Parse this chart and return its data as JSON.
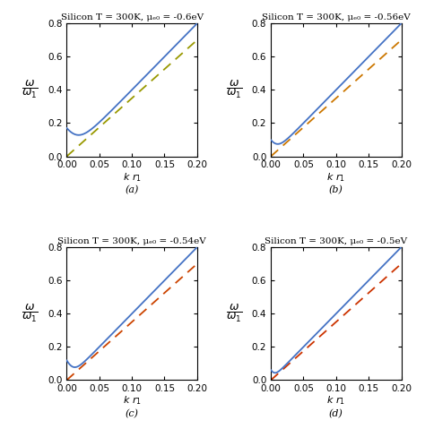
{
  "panels": [
    {
      "title": "Silicon T = 300K, μₑ₀ = -0.6eV",
      "label": "(a)",
      "omega0": 0.17,
      "sigma": 0.038,
      "slope_blue": 4.0,
      "dashed_color": "#999900",
      "dashed_slope": 3.5
    },
    {
      "title": "Silicon T = 300K, μₑ₀ = -0.56eV",
      "label": "(b)",
      "omega0": 0.098,
      "sigma": 0.022,
      "slope_blue": 4.0,
      "dashed_color": "#CC7700",
      "dashed_slope": 3.5
    },
    {
      "title": "Silicon T = 300K, μₑ₀ = -0.54eV",
      "label": "(c)",
      "omega0": 0.118,
      "sigma": 0.018,
      "slope_blue": 4.0,
      "dashed_color": "#CC4400",
      "dashed_slope": 3.5
    },
    {
      "title": "Silicon T = 300K, μₑ₀ = -0.5eV",
      "label": "(d)",
      "omega0": 0.06,
      "sigma": 0.012,
      "slope_blue": 4.0,
      "dashed_color": "#CC3300",
      "dashed_slope": 3.5
    }
  ],
  "xlim": [
    0.0,
    0.2
  ],
  "ylim": [
    0.0,
    0.8
  ],
  "xticks": [
    0.0,
    0.05,
    0.1,
    0.15,
    0.2
  ],
  "yticks": [
    0.0,
    0.2,
    0.4,
    0.6,
    0.8
  ],
  "blue_color": "#4472C4",
  "figsize": [
    4.74,
    4.98
  ],
  "dpi": 100,
  "bg_color": "#F8F8F8"
}
